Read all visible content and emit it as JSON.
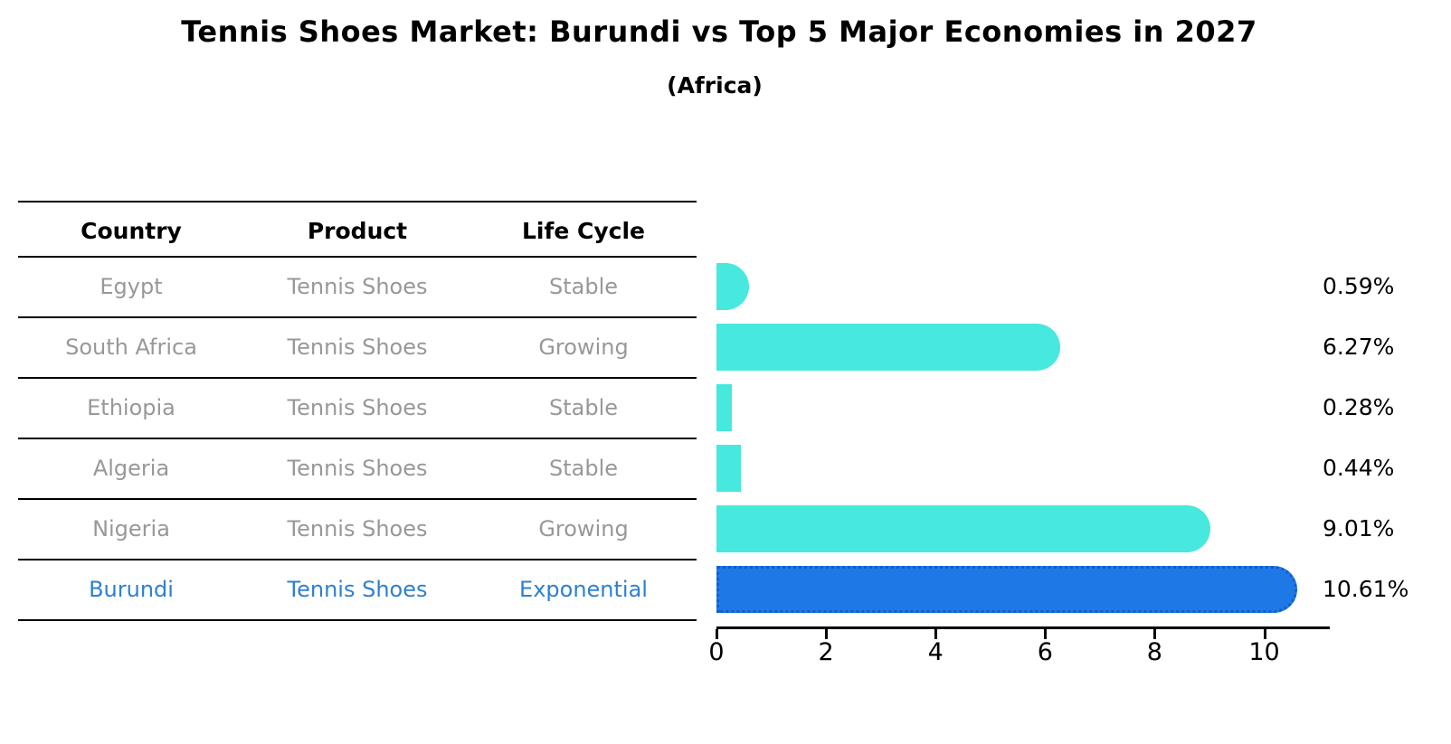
{
  "title": "Tennis Shoes Market: Burundi vs Top 5 Major Economies in 2027",
  "subtitle": "(Africa)",
  "table": {
    "headers": [
      "Country",
      "Product",
      "Life Cycle"
    ],
    "rows": [
      {
        "country": "Egypt",
        "product": "Tennis Shoes",
        "life_cycle": "Stable",
        "highlighted": false
      },
      {
        "country": "South Africa",
        "product": "Tennis Shoes",
        "life_cycle": "Growing",
        "highlighted": false
      },
      {
        "country": "Ethiopia",
        "product": "Tennis Shoes",
        "life_cycle": "Stable",
        "highlighted": false
      },
      {
        "country": "Algeria",
        "product": "Tennis Shoes",
        "life_cycle": "Stable",
        "highlighted": false
      },
      {
        "country": "Nigeria",
        "product": "Tennis Shoes",
        "life_cycle": "Growing",
        "highlighted": false
      },
      {
        "country": "Burundi",
        "product": "Tennis Shoes",
        "life_cycle": "Exponential",
        "highlighted": true
      }
    ]
  },
  "chart_data": {
    "type": "bar",
    "orientation": "horizontal",
    "title": "Tennis Shoes Market: Burundi vs Top 5 Major Economies in 2027",
    "subtitle": "(Africa)",
    "categories": [
      "Egypt",
      "South Africa",
      "Ethiopia",
      "Algeria",
      "Nigeria",
      "Burundi"
    ],
    "values": [
      0.59,
      6.27,
      0.28,
      0.44,
      9.01,
      10.61
    ],
    "value_labels": [
      "0.59%",
      "6.27%",
      "0.28%",
      "0.44%",
      "9.01%",
      "10.61%"
    ],
    "highlight_index": 5,
    "x_ticks": [
      0,
      2,
      4,
      6,
      8,
      10
    ],
    "xlim": [
      0,
      11.2
    ],
    "grid": false,
    "legend": false,
    "bar_color": "#47e8de",
    "highlight_color": "#1e79e6",
    "highlight_border_color": "#0f5ed2",
    "muted_text_color": "#989898",
    "highlight_text_color": "#2e80d0"
  }
}
